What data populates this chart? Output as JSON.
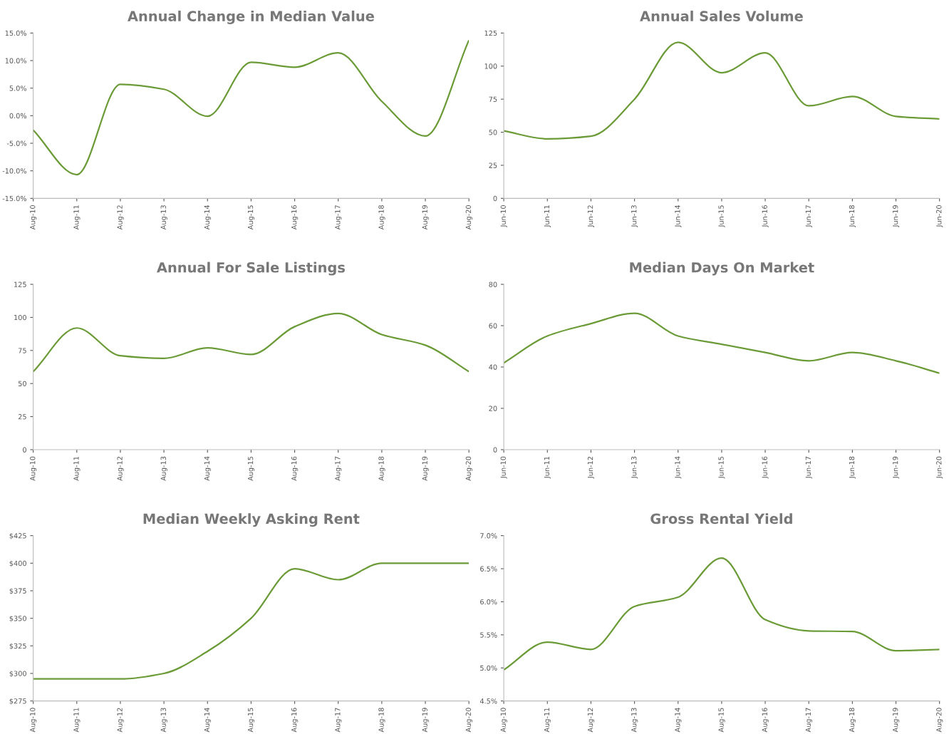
{
  "chart_data": [
    {
      "type": "line",
      "title": "Annual Change in Median Value",
      "categories": [
        "Aug-10",
        "Aug-11",
        "Aug-12",
        "Aug-13",
        "Aug-14",
        "Aug-15",
        "Aug-16",
        "Aug-17",
        "Aug-18",
        "Aug-19",
        "Aug-20"
      ],
      "series": [
        {
          "color": "#6b9b37",
          "values": [
            -2.6,
            -10.7,
            5.7,
            4.8,
            -0.1,
            9.7,
            8.8,
            11.4,
            2.6,
            -3.7,
            13.7
          ]
        }
      ],
      "ylim": [
        -15,
        15
      ],
      "yticks": [
        {
          "value": -15,
          "label": "-15.0%"
        },
        {
          "value": -10,
          "label": "-10.0%"
        },
        {
          "value": -5,
          "label": "-5.0%"
        },
        {
          "value": 0,
          "label": "0.0%"
        },
        {
          "value": 5,
          "label": "5.0%"
        },
        {
          "value": 10,
          "label": "10.0%"
        },
        {
          "value": 15,
          "label": "15.0%"
        }
      ],
      "grid": false,
      "legend": false
    },
    {
      "type": "line",
      "title": "Annual Sales Volume",
      "categories": [
        "Jun-10",
        "Jun-11",
        "Jun-12",
        "Jun-13",
        "Jun-14",
        "Jun-15",
        "Jun-16",
        "Jun-17",
        "Jun-18",
        "Jun-19",
        "Jun-20"
      ],
      "series": [
        {
          "color": "#6b9b37",
          "values": [
            51,
            45,
            47,
            75,
            118,
            95,
            110,
            70,
            77,
            62,
            60
          ]
        }
      ],
      "ylim": [
        0,
        125
      ],
      "yticks": [
        0,
        25,
        50,
        75,
        100,
        125
      ],
      "grid": false,
      "legend": false
    },
    {
      "type": "line",
      "title": "Annual For Sale Listings",
      "categories": [
        "Aug-10",
        "Aug-11",
        "Aug-12",
        "Aug-13",
        "Aug-14",
        "Aug-15",
        "Aug-16",
        "Aug-17",
        "Aug-18",
        "Aug-19",
        "Aug-20"
      ],
      "series": [
        {
          "color": "#6b9b37",
          "values": [
            59,
            92,
            71,
            69,
            77,
            72,
            93,
            103,
            87,
            79,
            59
          ]
        }
      ],
      "ylim": [
        0,
        125
      ],
      "yticks": [
        0,
        25,
        50,
        75,
        100,
        125
      ],
      "grid": false,
      "legend": false
    },
    {
      "type": "line",
      "title": "Median Days On Market",
      "categories": [
        "Jun-10",
        "Jun-11",
        "Jun-12",
        "Jun-13",
        "Jun-14",
        "Jun-15",
        "Jun-16",
        "Jun-17",
        "Jun-18",
        "Jun-19",
        "Jun-20"
      ],
      "series": [
        {
          "color": "#6b9b37",
          "values": [
            42,
            55,
            61,
            66,
            55,
            51,
            47,
            43,
            47,
            43,
            37
          ]
        }
      ],
      "ylim": [
        0,
        80
      ],
      "yticks": [
        0,
        20,
        40,
        60,
        80
      ],
      "grid": false,
      "legend": false
    },
    {
      "type": "line",
      "title": "Median Weekly Asking Rent",
      "categories": [
        "Aug-10",
        "Aug-11",
        "Aug-12",
        "Aug-13",
        "Aug-14",
        "Aug-15",
        "Aug-16",
        "Aug-17",
        "Aug-18",
        "Aug-19",
        "Aug-20"
      ],
      "series": [
        {
          "color": "#6b9b37",
          "values": [
            295,
            295,
            295,
            300,
            320,
            350,
            395,
            385,
            400,
            400,
            400
          ]
        }
      ],
      "ylim": [
        275,
        425
      ],
      "yticks": [
        {
          "value": 275,
          "label": "$275"
        },
        {
          "value": 300,
          "label": "$300"
        },
        {
          "value": 325,
          "label": "$325"
        },
        {
          "value": 350,
          "label": "$350"
        },
        {
          "value": 375,
          "label": "$375"
        },
        {
          "value": 400,
          "label": "$400"
        },
        {
          "value": 425,
          "label": "$425"
        }
      ],
      "grid": false,
      "legend": false
    },
    {
      "type": "line",
      "title": "Gross Rental Yield",
      "categories": [
        "Aug-10",
        "Aug-11",
        "Aug-12",
        "Aug-13",
        "Aug-14",
        "Aug-15",
        "Aug-16",
        "Aug-17",
        "Aug-18",
        "Aug-19",
        "Aug-20"
      ],
      "series": [
        {
          "color": "#6b9b37",
          "values": [
            4.97,
            5.39,
            5.28,
            5.93,
            6.07,
            6.66,
            5.73,
            5.56,
            5.55,
            5.26,
            5.28
          ]
        }
      ],
      "ylim": [
        4.5,
        7.0
      ],
      "yticks": [
        {
          "value": 4.5,
          "label": "4.5%"
        },
        {
          "value": 5.0,
          "label": "5.0%"
        },
        {
          "value": 5.5,
          "label": "5.5%"
        },
        {
          "value": 6.0,
          "label": "6.0%"
        },
        {
          "value": 6.5,
          "label": "6.5%"
        },
        {
          "value": 7.0,
          "label": "7.0%"
        }
      ],
      "grid": false,
      "legend": false
    }
  ]
}
